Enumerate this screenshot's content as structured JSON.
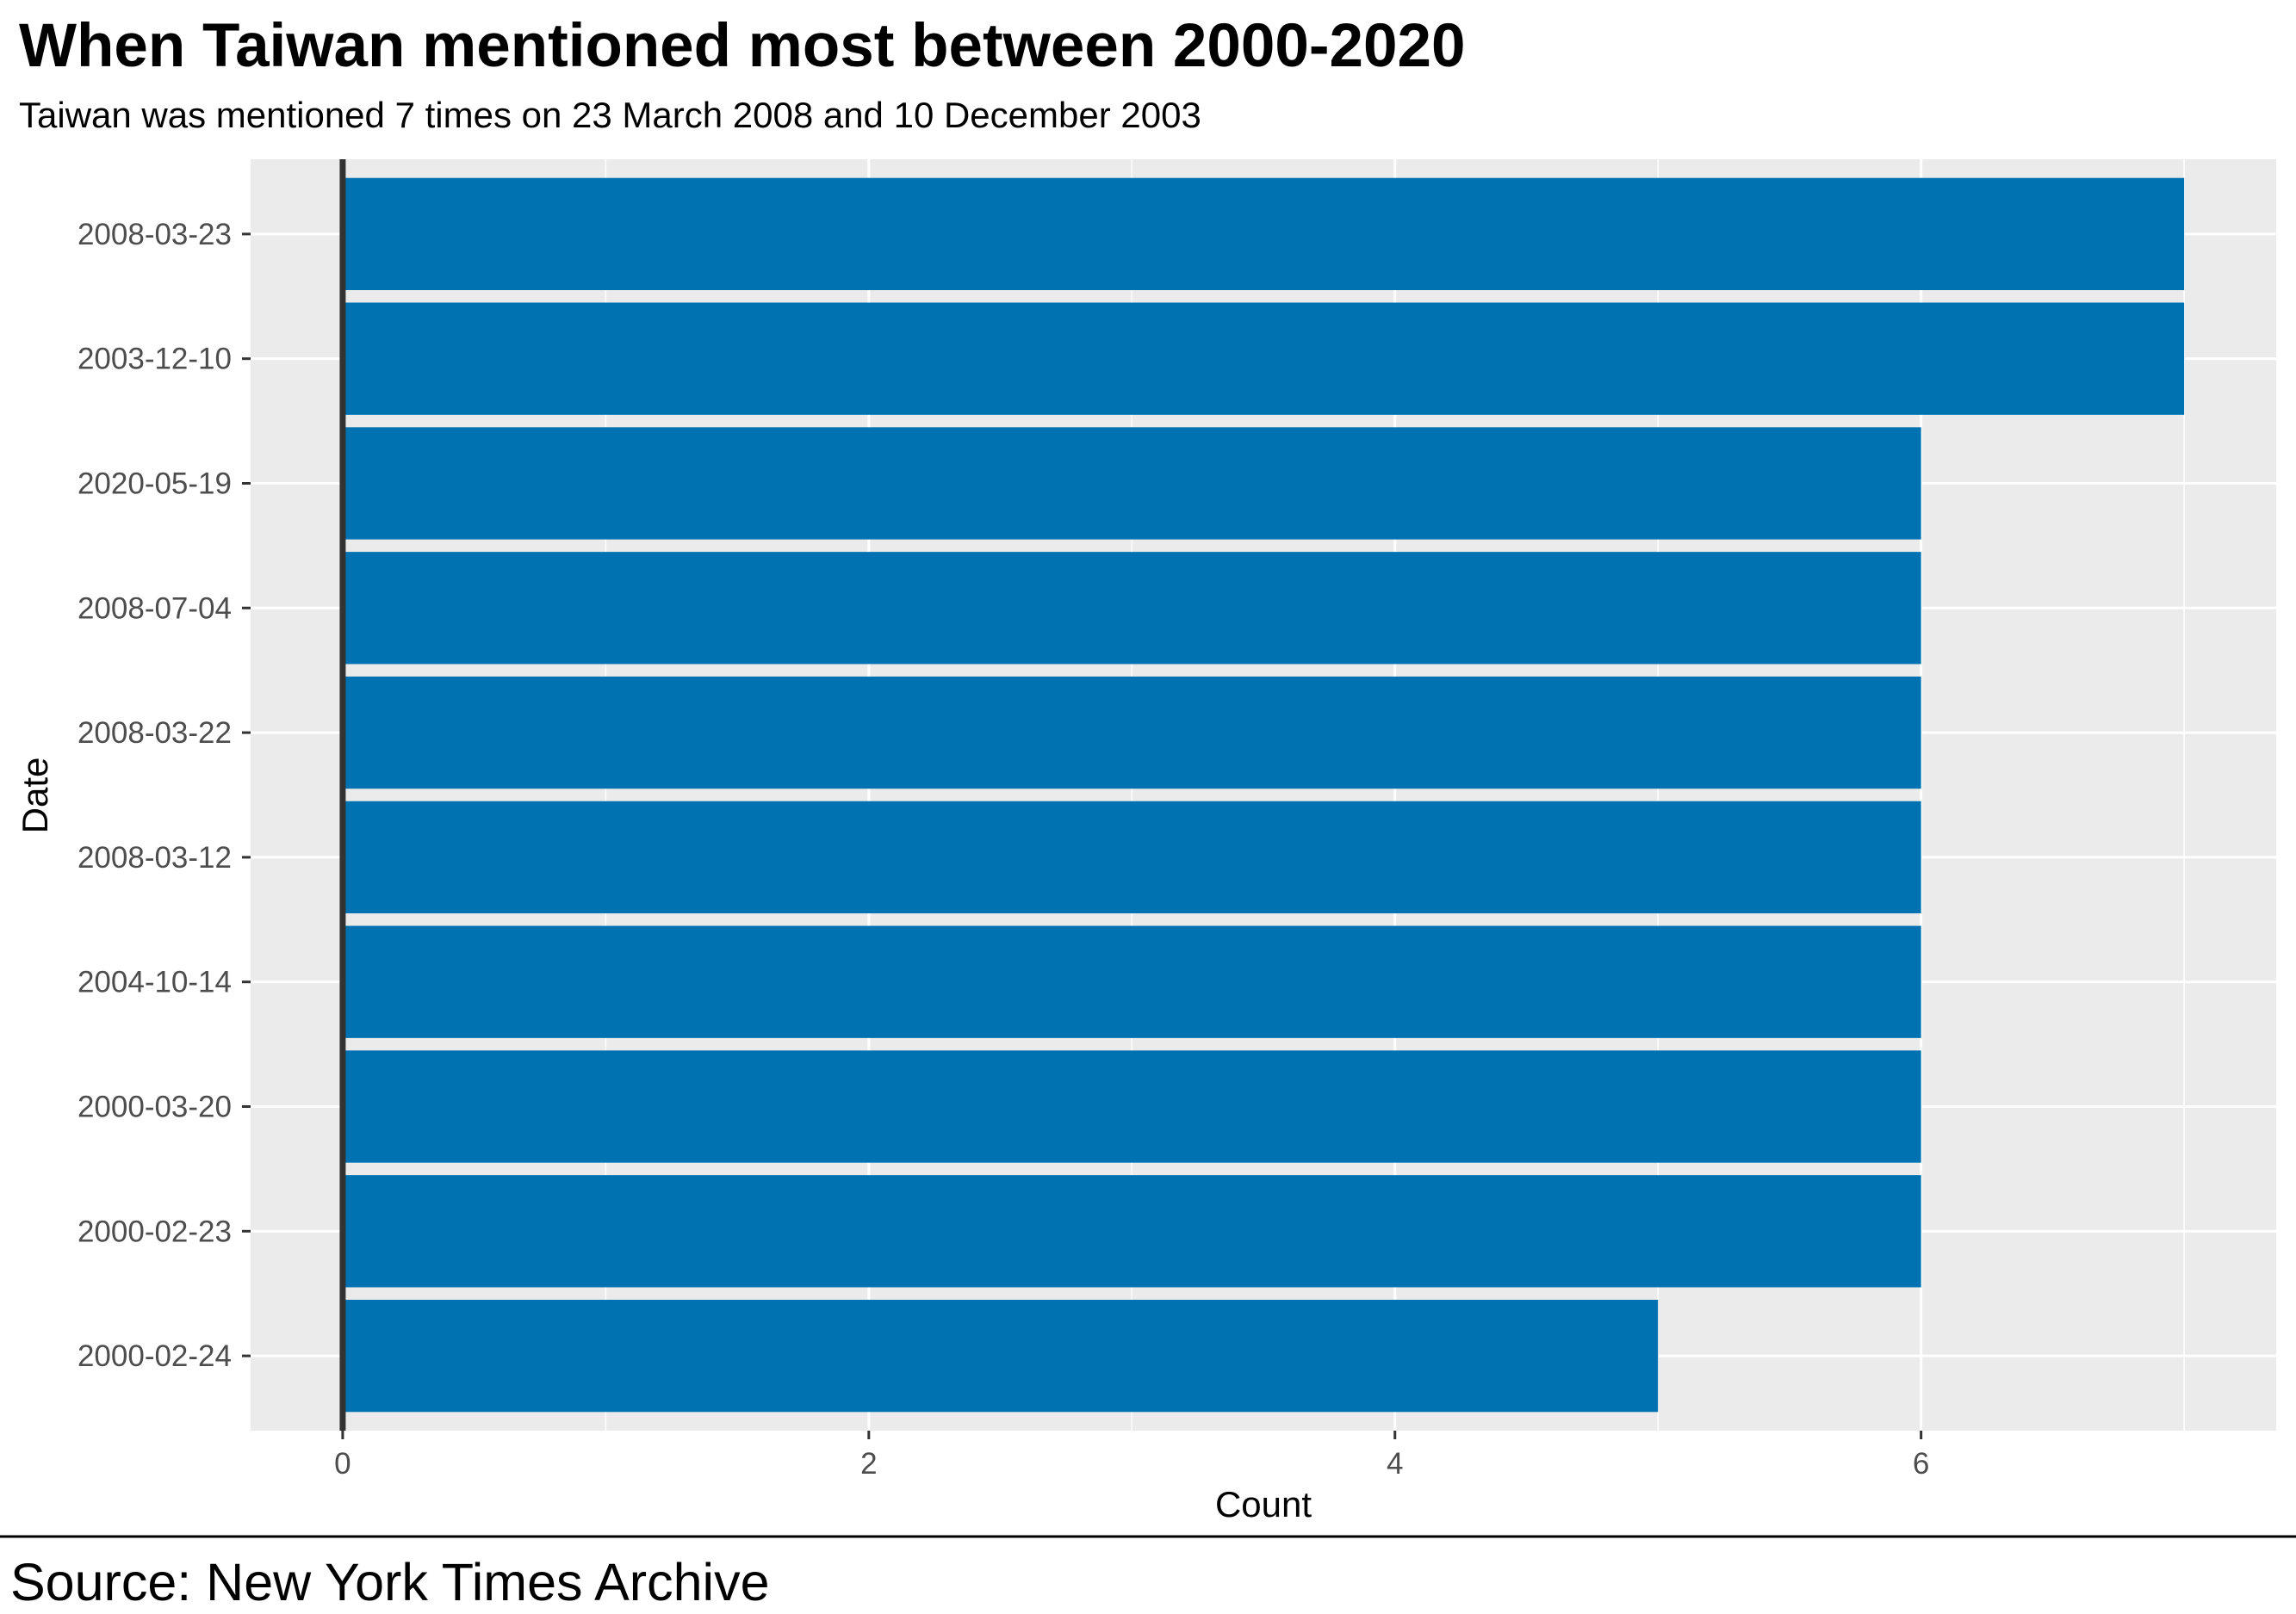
{
  "chart_data": {
    "type": "bar",
    "orientation": "horizontal",
    "title": "When Taiwan mentioned most between 2000-2020",
    "subtitle": "Taiwan was mentioned 7 times on 23 March 2008 and 10 December 2003",
    "xlabel": "Count",
    "ylabel": "Date",
    "caption": "Source: New York Times Archive",
    "categories": [
      "2008-03-23",
      "2003-12-10",
      "2020-05-19",
      "2008-07-04",
      "2008-03-22",
      "2008-03-12",
      "2004-10-14",
      "2000-03-20",
      "2000-02-23",
      "2000-02-24"
    ],
    "values": [
      7,
      7,
      6,
      6,
      6,
      6,
      6,
      6,
      6,
      5
    ],
    "xlim": [
      -0.35,
      7.35
    ],
    "xticks": [
      0,
      2,
      4,
      6
    ],
    "xtick_labels": [
      "0",
      "2",
      "4",
      "6"
    ],
    "grid": true,
    "colors": {
      "bar": "#0072B2",
      "panel": "#EBEBEB",
      "grid": "#FFFFFF",
      "zero_line": "#333333"
    }
  }
}
